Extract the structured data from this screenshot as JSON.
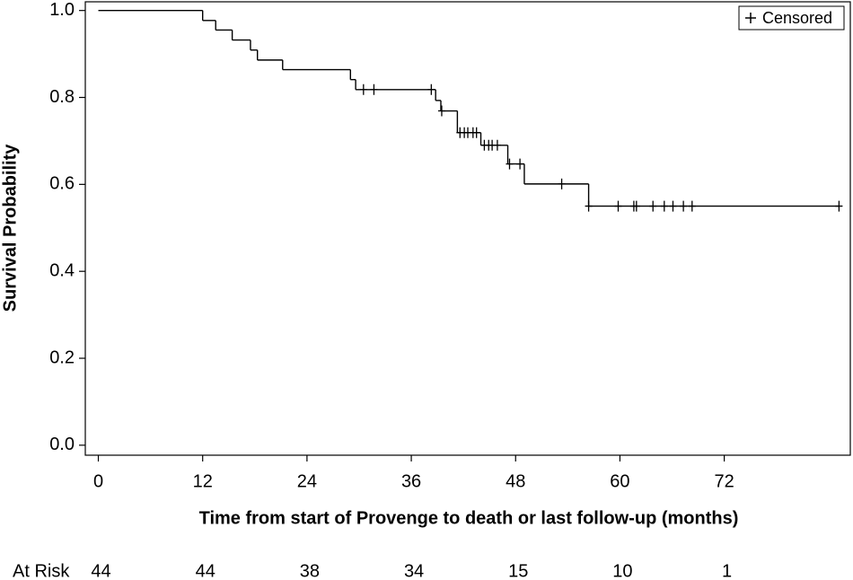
{
  "chart_data": {
    "type": "step",
    "x_label": "Time from start of Provenge to death or last follow-up (months)",
    "y_label": "Survival Probability",
    "xlim": [
      -1.5,
      86.5
    ],
    "ylim": [
      -0.023,
      1.02
    ],
    "xticks": [
      0,
      12,
      24,
      36,
      48,
      60,
      72
    ],
    "yticks": [
      {
        "value": 0,
        "label": "0.0"
      },
      {
        "value": 0.2,
        "label": "0.2"
      },
      {
        "value": 0.4,
        "label": "0.4"
      },
      {
        "value": 0.6,
        "label": "0.6"
      },
      {
        "value": 0.8,
        "label": "0.8"
      },
      {
        "value": 1,
        "label": "1.0"
      }
    ],
    "color": "#000000",
    "survival": {
      "x": [
        0,
        12,
        13.5,
        15.4,
        17.5,
        18.3,
        21.2,
        29,
        29.6,
        38.8,
        39.4,
        41.3,
        44,
        47.1,
        49,
        56.4
      ],
      "values": [
        1,
        0.977,
        0.955,
        0.932,
        0.909,
        0.886,
        0.864,
        0.841,
        0.818,
        0.793,
        0.769,
        0.719,
        0.69,
        0.647,
        0.601,
        0.55
      ]
    },
    "censored": {
      "name": "Censored",
      "x": [
        30.5,
        31.7,
        38.3,
        39.5,
        41.6,
        42.1,
        42.5,
        43.1,
        43.5,
        44.4,
        44.9,
        45.3,
        45.9,
        47.3,
        48.5,
        53.3,
        56.4,
        59.8,
        61.6,
        61.9,
        63.8,
        65.1,
        66.1,
        67.3,
        68.3,
        85.2
      ],
      "values": [
        0.818,
        0.818,
        0.818,
        0.769,
        0.719,
        0.719,
        0.719,
        0.719,
        0.719,
        0.69,
        0.69,
        0.69,
        0.69,
        0.647,
        0.647,
        0.601,
        0.55,
        0.55,
        0.55,
        0.55,
        0.55,
        0.55,
        0.55,
        0.55,
        0.55,
        0.55
      ]
    },
    "legend": "top-right",
    "at_risk": {
      "label": "At Risk",
      "values": [
        44,
        44,
        38,
        34,
        15,
        10,
        1
      ]
    }
  }
}
